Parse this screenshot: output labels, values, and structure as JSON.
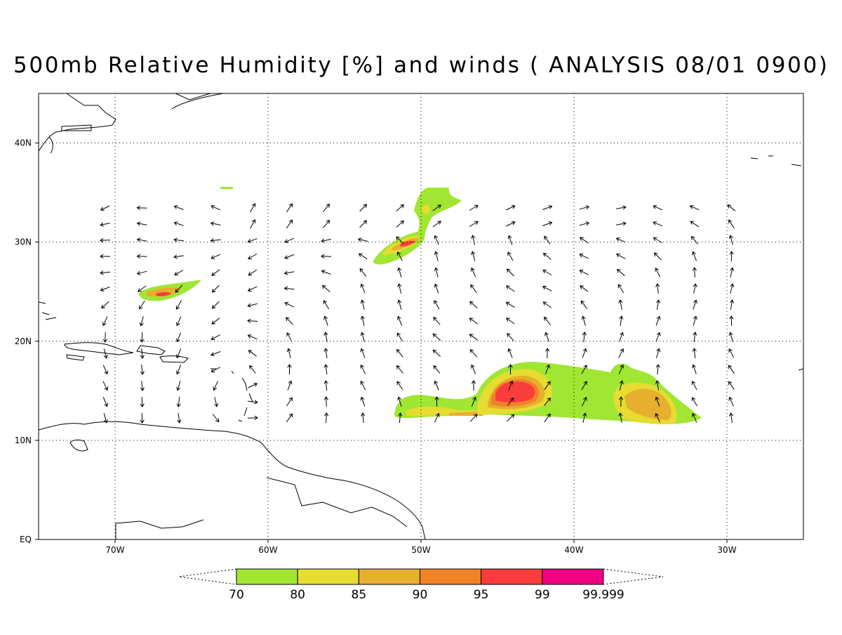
{
  "map": {
    "title": "500mb Relative Humidity [%] and winds ( ANALYSIS 08/01 0900)",
    "xlim": [
      -75,
      -25
    ],
    "ylim": [
      0,
      45
    ],
    "xticks": [
      {
        "value": -70,
        "label": "70W"
      },
      {
        "value": -60,
        "label": "60W"
      },
      {
        "value": -50,
        "label": "50W"
      },
      {
        "value": -40,
        "label": "40W"
      },
      {
        "value": -30,
        "label": "30W"
      }
    ],
    "yticks": [
      {
        "value": 0,
        "label": "EQ"
      },
      {
        "value": 10,
        "label": "10N"
      },
      {
        "value": 20,
        "label": "20N"
      },
      {
        "value": 30,
        "label": "30N"
      },
      {
        "value": 40,
        "label": "40N"
      }
    ],
    "grid": true,
    "colorbar": {
      "levels": [
        70,
        80,
        85,
        90,
        95,
        99,
        99.999
      ],
      "colors": [
        "#a0e632",
        "#e6dc32",
        "#e6af2d",
        "#f08228",
        "#fa3c3c",
        "#f00082"
      ]
    }
  }
}
